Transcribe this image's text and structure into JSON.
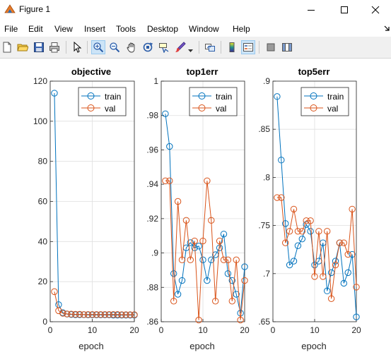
{
  "window": {
    "title": "Figure 1"
  },
  "menu": [
    "File",
    "Edit",
    "View",
    "Insert",
    "Tools",
    "Desktop",
    "Window",
    "Help"
  ],
  "toolbar": {
    "icons": [
      "new-figure-icon",
      "open-file-icon",
      "save-icon",
      "print-icon",
      "pointer-icon",
      "zoom-in-icon",
      "zoom-out-icon",
      "pan-icon",
      "rotate-3d-icon",
      "data-cursor-icon",
      "brush-icon",
      "link-plot-icon",
      "colorbar-icon",
      "legend-icon",
      "hide-plot-tools-icon",
      "show-plot-tools-icon"
    ]
  },
  "chart_data": [
    {
      "type": "line",
      "title": "objective",
      "xlabel": "epoch",
      "ylabel": "",
      "xlim": [
        0,
        20
      ],
      "ylim": [
        0,
        120
      ],
      "xticks": [
        0,
        10,
        20
      ],
      "yticks": [
        0,
        20,
        40,
        60,
        80,
        100,
        120
      ],
      "grid": true,
      "legend": "top-right",
      "series": [
        {
          "name": "train",
          "color": "#0072bd",
          "x": [
            1,
            2,
            3,
            4,
            5,
            6,
            7,
            8,
            9,
            10,
            11,
            12,
            13,
            14,
            15,
            16,
            17,
            18,
            19,
            20
          ],
          "values": [
            114,
            8.5,
            4.5,
            3.8,
            3.6,
            3.5,
            3.5,
            3.5,
            3.4,
            3.4,
            3.4,
            3.4,
            3.4,
            3.4,
            3.3,
            3.3,
            3.3,
            3.3,
            3.3,
            3.3
          ]
        },
        {
          "name": "val",
          "color": "#d95319",
          "x": [
            1,
            2,
            3,
            4,
            5,
            6,
            7,
            8,
            9,
            10,
            11,
            12,
            13,
            14,
            15,
            16,
            17,
            18,
            19,
            20
          ],
          "values": [
            15,
            5.5,
            4.2,
            3.9,
            3.8,
            3.7,
            3.7,
            3.6,
            3.6,
            3.6,
            3.6,
            3.6,
            3.6,
            3.6,
            3.6,
            3.6,
            3.5,
            3.5,
            3.5,
            3.5
          ]
        }
      ]
    },
    {
      "type": "line",
      "title": "top1err",
      "xlabel": "epoch",
      "ylabel": "",
      "xlim": [
        0,
        20
      ],
      "ylim": [
        0.86,
        1
      ],
      "xticks": [
        0,
        10,
        20
      ],
      "yticks": [
        0.86,
        0.88,
        0.9,
        0.92,
        0.94,
        0.96,
        0.98,
        1
      ],
      "grid": true,
      "legend": "top-right",
      "series": [
        {
          "name": "train",
          "color": "#0072bd",
          "x": [
            1,
            2,
            3,
            4,
            5,
            6,
            7,
            8,
            9,
            10,
            11,
            12,
            13,
            14,
            15,
            16,
            17,
            18,
            19,
            20
          ],
          "values": [
            0.981,
            0.962,
            0.888,
            0.876,
            0.884,
            0.903,
            0.906,
            0.903,
            0.904,
            0.896,
            0.884,
            0.896,
            0.899,
            0.903,
            0.911,
            0.888,
            0.884,
            0.876,
            0.865,
            0.892
          ]
        },
        {
          "name": "val",
          "color": "#d95319",
          "x": [
            1,
            2,
            3,
            4,
            5,
            6,
            7,
            8,
            9,
            10,
            11,
            12,
            13,
            14,
            15,
            16,
            17,
            18,
            19,
            20
          ],
          "values": [
            0.942,
            0.942,
            0.872,
            0.93,
            0.896,
            0.919,
            0.896,
            0.907,
            0.861,
            0.907,
            0.942,
            0.919,
            0.872,
            0.907,
            0.896,
            0.896,
            0.872,
            0.896,
            0.861,
            0.884
          ]
        }
      ]
    },
    {
      "type": "line",
      "title": "top5err",
      "xlabel": "epoch",
      "ylabel": "",
      "xlim": [
        0,
        20
      ],
      "ylim": [
        0.65,
        0.9
      ],
      "xticks": [
        0,
        10,
        20
      ],
      "yticks": [
        0.65,
        0.7,
        0.75,
        0.8,
        0.85,
        0.9
      ],
      "grid": true,
      "legend": "top-right",
      "series": [
        {
          "name": "train",
          "color": "#0072bd",
          "x": [
            1,
            2,
            3,
            4,
            5,
            6,
            7,
            8,
            9,
            10,
            11,
            12,
            13,
            14,
            15,
            16,
            17,
            18,
            19,
            20
          ],
          "values": [
            0.884,
            0.818,
            0.752,
            0.709,
            0.713,
            0.729,
            0.736,
            0.751,
            0.744,
            0.709,
            0.713,
            0.732,
            0.682,
            0.701,
            0.713,
            0.732,
            0.69,
            0.701,
            0.72,
            0.655
          ]
        },
        {
          "name": "val",
          "color": "#d95319",
          "x": [
            1,
            2,
            3,
            4,
            5,
            6,
            7,
            8,
            9,
            10,
            11,
            12,
            13,
            14,
            15,
            16,
            17,
            18,
            19,
            20
          ],
          "values": [
            0.779,
            0.779,
            0.732,
            0.744,
            0.767,
            0.744,
            0.744,
            0.755,
            0.755,
            0.697,
            0.744,
            0.697,
            0.744,
            0.674,
            0.709,
            0.732,
            0.732,
            0.72,
            0.767,
            0.686
          ]
        }
      ]
    }
  ]
}
